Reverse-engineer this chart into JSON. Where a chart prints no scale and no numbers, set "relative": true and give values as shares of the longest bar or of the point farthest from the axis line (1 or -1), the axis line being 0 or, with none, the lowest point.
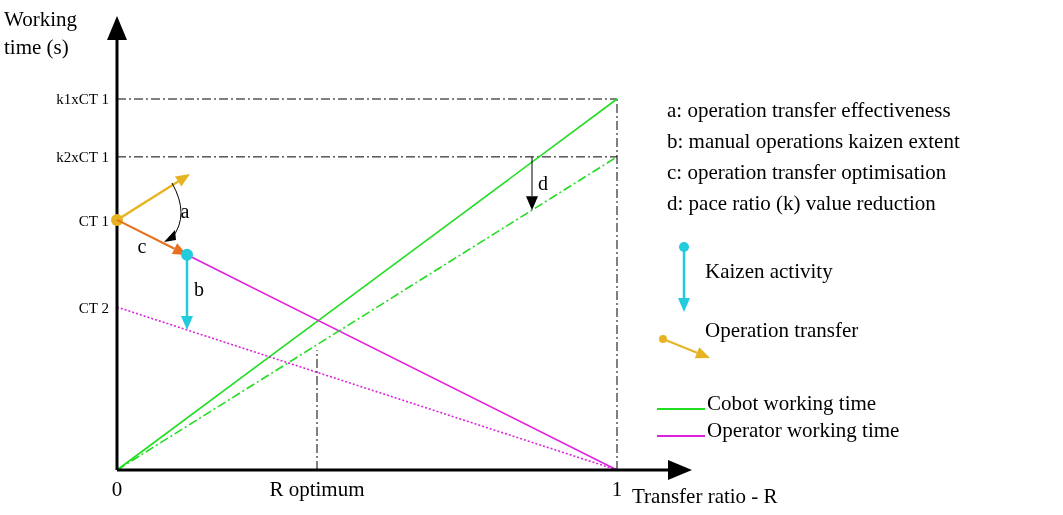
{
  "chart_data": {
    "type": "line",
    "relative": true,
    "xlabel": "Transfer ratio  - R",
    "ylabel": "Working time (s)",
    "xlim": [
      0,
      1
    ],
    "xticks": [
      0,
      {
        "value": 0.4,
        "label": "R optimum"
      },
      1
    ],
    "legend": "right",
    "series": [
      {
        "name": "Cobot working time",
        "color": "#22dd22",
        "x": [
          0,
          1
        ],
        "values": [
          0,
          1
        ],
        "line_style": "solid"
      },
      {
        "name": "Operator working time",
        "color": "#dd22dd",
        "x": [
          0.14,
          1
        ],
        "values": [
          0.58,
          0
        ],
        "line_style": "solid"
      },
      {
        "color": "#22dd22",
        "x": [
          0,
          1
        ],
        "values": [
          0,
          0.844
        ],
        "line_style": "dashed"
      },
      {
        "color": "#dd22dd",
        "x": [
          0,
          1
        ],
        "values": [
          0.439,
          0
        ],
        "line_style": "dotted"
      },
      {
        "color": "#000000",
        "x": [
          0.4,
          0.4
        ],
        "values": [
          0,
          0.323
        ],
        "line_style": "dashed"
      }
    ],
    "ref_lines": [
      {
        "axis": "y",
        "value": 1,
        "label": "k1xCT 1",
        "color": "#000000",
        "line_style": "dashed"
      },
      {
        "axis": "y",
        "value": 0.844,
        "label": "k2xCT 1",
        "color": "#000000",
        "line_style": "dashed"
      },
      {
        "axis": "x",
        "value": 1,
        "color": "#000000",
        "line_style": "dashed"
      }
    ],
    "annotations": [
      "a: operation transfer effectiveness",
      "b: manual operations kaizen extent",
      "c: operation transfer optimisation",
      "d: pace ratio (k) value reduction",
      "Kaizen activity",
      "Operation transfer",
      {
        "text": "CT 1",
        "x": 0,
        "y": 0.674
      },
      {
        "text": "CT 2",
        "x": 0,
        "y": 0.439
      },
      "a",
      "b",
      "c",
      "d"
    ]
  }
}
